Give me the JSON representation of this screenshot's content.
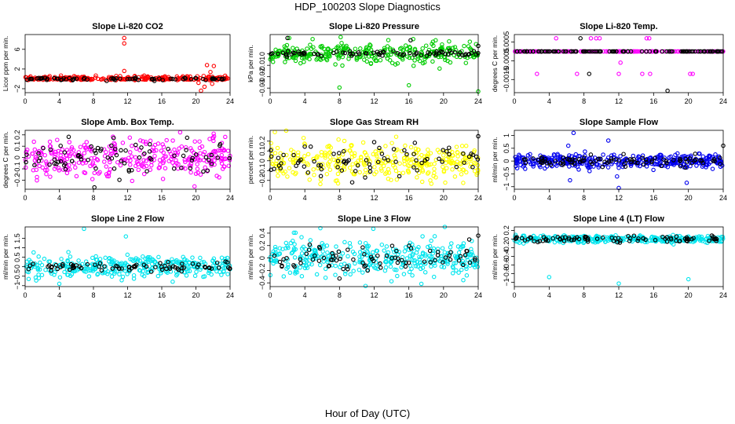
{
  "figure": {
    "title": "HDP_100203  Slope Diagnostics",
    "xlabel": "Hour of Day (UTC)"
  },
  "chart_data": [
    {
      "type": "scatter",
      "title": "Slope Li-820 CO2",
      "ylabel": "Licor ppm per min.",
      "xlim": [
        0,
        24
      ],
      "xticks": [
        0,
        4,
        8,
        12,
        16,
        20,
        24
      ],
      "ylim": [
        -2.8,
        9
      ],
      "yticks": [
        -2,
        2,
        6
      ],
      "series": [
        {
          "color": "#ff0000",
          "noise": 0.28,
          "n": 260,
          "outliers": [
            [
              11.6,
              8.3
            ],
            [
              11.6,
              7.2
            ],
            [
              11.6,
              1.6
            ],
            [
              20.3,
              -0.8
            ],
            [
              20.6,
              -2.4
            ],
            [
              20.9,
              0.6
            ],
            [
              21.3,
              2.8
            ],
            [
              21.7,
              1.4
            ],
            [
              22.1,
              2.6
            ],
            [
              21.0,
              -1.6
            ],
            [
              21.9,
              -1.0
            ]
          ]
        },
        {
          "color": "#000000",
          "noise": 0.12,
          "n": 70,
          "outliers": []
        }
      ]
    },
    {
      "type": "scatter",
      "title": "Slope Li-820 Pressure",
      "ylabel": "kPa per min.",
      "xlim": [
        0,
        24
      ],
      "xticks": [
        0,
        4,
        8,
        12,
        16,
        20,
        24
      ],
      "ylim": [
        -0.034,
        0.017
      ],
      "yticks": [
        0.0,
        -0.01,
        -0.02,
        -0.03
      ],
      "series": [
        {
          "color": "#00cc00",
          "noise": 0.0045,
          "n": 300,
          "outliers": [
            [
              8.0,
              -0.0295
            ],
            [
              16.0,
              -0.0275
            ],
            [
              24.0,
              -0.033
            ],
            [
              16.5,
              0.013
            ],
            [
              2.2,
              0.014
            ],
            [
              4.9,
              0.013
            ]
          ]
        },
        {
          "color": "#000000",
          "noise": 0.0012,
          "n": 80,
          "outliers": [
            [
              2.0,
              0.014
            ],
            [
              24.0,
              0.007
            ],
            [
              16.2,
              0.012
            ]
          ]
        }
      ]
    },
    {
      "type": "scatter",
      "title": "Slope Li-820 Temp.",
      "ylabel": "degrees C per min.",
      "xlim": [
        0,
        24
      ],
      "xticks": [
        0,
        4,
        8,
        12,
        16,
        20,
        24
      ],
      "ylim": [
        -0.0022,
        0.0009
      ],
      "yticks": [
        0.0005,
        -0.0005,
        -0.0015
      ],
      "series": [
        {
          "color": "#ff00ff",
          "noise": 0.0,
          "n": 160,
          "outliers": [
            [
              4.8,
              0.0007
            ],
            [
              8.8,
              0.0007
            ],
            [
              9.4,
              0.0007
            ],
            [
              9.8,
              0.0007
            ],
            [
              15.2,
              0.0007
            ],
            [
              15.5,
              0.0007
            ],
            [
              2.6,
              -0.0012
            ],
            [
              7.2,
              -0.0012
            ],
            [
              12.0,
              -0.0012
            ],
            [
              14.7,
              -0.0012
            ],
            [
              15.6,
              -0.0012
            ],
            [
              20.2,
              -0.0012
            ],
            [
              20.5,
              -0.0012
            ],
            [
              12.2,
              -0.0006
            ]
          ]
        },
        {
          "color": "#000000",
          "noise": 0.0,
          "n": 110,
          "outliers": [
            [
              7.6,
              0.0007
            ],
            [
              8.6,
              -0.0012
            ],
            [
              17.6,
              -0.0021
            ]
          ]
        }
      ]
    },
    {
      "type": "scatter",
      "title": "Slope Amb. Box Temp.",
      "ylabel": "degrees C per min.",
      "xlim": [
        0,
        24
      ],
      "xticks": [
        0,
        4,
        8,
        12,
        16,
        20,
        24
      ],
      "ylim": [
        -0.28,
        0.24
      ],
      "yticks": [
        0.2,
        0.1,
        0.0,
        -0.1,
        -0.2
      ],
      "series": [
        {
          "color": "#ff00ff",
          "noise": 0.085,
          "n": 320,
          "outliers": []
        },
        {
          "color": "#000000",
          "noise": 0.07,
          "n": 80,
          "outliers": []
        }
      ]
    },
    {
      "type": "scatter",
      "title": "Slope Gas Stream RH",
      "ylabel": "percent per min.",
      "xlim": [
        0,
        24
      ],
      "xticks": [
        0,
        4,
        8,
        12,
        16,
        20,
        24
      ],
      "ylim": [
        -0.29,
        0.31
      ],
      "yticks": [
        0.2,
        0.1,
        0.0,
        -0.1,
        -0.2
      ],
      "series": [
        {
          "color": "#ffff00",
          "noise": 0.09,
          "n": 340,
          "outliers": []
        },
        {
          "color": "#000000",
          "noise": 0.07,
          "n": 75,
          "outliers": [
            [
              24.0,
              0.25
            ],
            [
              12.0,
              0.19
            ]
          ]
        }
      ]
    },
    {
      "type": "scatter",
      "title": "Slope Sample Flow",
      "ylabel": "ml/min per min.",
      "xlim": [
        0,
        24
      ],
      "xticks": [
        0,
        4,
        8,
        12,
        16,
        20,
        24
      ],
      "ylim": [
        -1.1,
        1.2
      ],
      "yticks": [
        1.0,
        0.5,
        0.0,
        -0.5,
        -1.0
      ],
      "series": [
        {
          "color": "#0000ee",
          "noise": 0.13,
          "n": 380,
          "outliers": [
            [
              6.8,
              1.1
            ],
            [
              10.8,
              0.8
            ],
            [
              6.2,
              0.6
            ],
            [
              12.0,
              -1.05
            ],
            [
              19.8,
              -0.85
            ],
            [
              6.4,
              -0.75
            ],
            [
              11.8,
              -0.6
            ]
          ]
        },
        {
          "color": "#000000",
          "noise": 0.1,
          "n": 90,
          "outliers": [
            [
              24.0,
              0.6
            ]
          ]
        }
      ]
    },
    {
      "type": "scatter",
      "title": "Slope Line 2 Flow",
      "ylabel": "ml/min per min.",
      "xlim": [
        0,
        24
      ],
      "xticks": [
        0,
        4,
        8,
        12,
        16,
        20,
        24
      ],
      "ylim": [
        -1.05,
        2.1
      ],
      "yticks": [
        1.5,
        1.0,
        0.5,
        0.0,
        -0.5,
        -1.0
      ],
      "series": [
        {
          "color": "#00e5ee",
          "noise": 0.3,
          "n": 330,
          "outliers": [
            [
              6.9,
              2.0
            ],
            [
              11.8,
              1.6
            ],
            [
              4.0,
              -0.9
            ]
          ]
        },
        {
          "color": "#000000",
          "noise": 0.1,
          "n": 80,
          "outliers": []
        }
      ]
    },
    {
      "type": "scatter",
      "title": "Slope Line 3 Flow",
      "ylabel": "ml/min per min.",
      "xlim": [
        0,
        24
      ],
      "xticks": [
        0,
        4,
        8,
        12,
        16,
        20,
        24
      ],
      "ylim": [
        -0.46,
        0.5
      ],
      "yticks": [
        0.4,
        0.2,
        0.0,
        -0.2,
        -0.4
      ],
      "series": [
        {
          "color": "#00e5ee",
          "noise": 0.14,
          "n": 360,
          "outliers": [
            [
              5.8,
              0.48
            ],
            [
              11.9,
              0.47
            ],
            [
              11.0,
              -0.45
            ]
          ]
        },
        {
          "color": "#000000",
          "noise": 0.09,
          "n": 80,
          "outliers": [
            [
              24.0,
              0.36
            ],
            [
              8.0,
              -0.33
            ]
          ]
        }
      ]
    },
    {
      "type": "scatter",
      "title": "Slope Line 4 (LT) Flow",
      "ylabel": "ml/min per min.",
      "xlim": [
        0,
        24
      ],
      "xticks": [
        0,
        4,
        8,
        12,
        16,
        20,
        24
      ],
      "ylim": [
        -1.1,
        0.28
      ],
      "yticks": [
        0.2,
        0.0,
        -0.2,
        -0.4,
        -0.6,
        -0.8,
        -1.0
      ],
      "series": [
        {
          "color": "#00e5ee",
          "noise": 0.04,
          "n": 340,
          "outliers": [
            [
              4.0,
              -0.88
            ],
            [
              12.0,
              -1.03
            ],
            [
              20.0,
              -0.93
            ]
          ]
        },
        {
          "color": "#000000",
          "noise": 0.035,
          "n": 85,
          "outliers": []
        }
      ]
    }
  ]
}
